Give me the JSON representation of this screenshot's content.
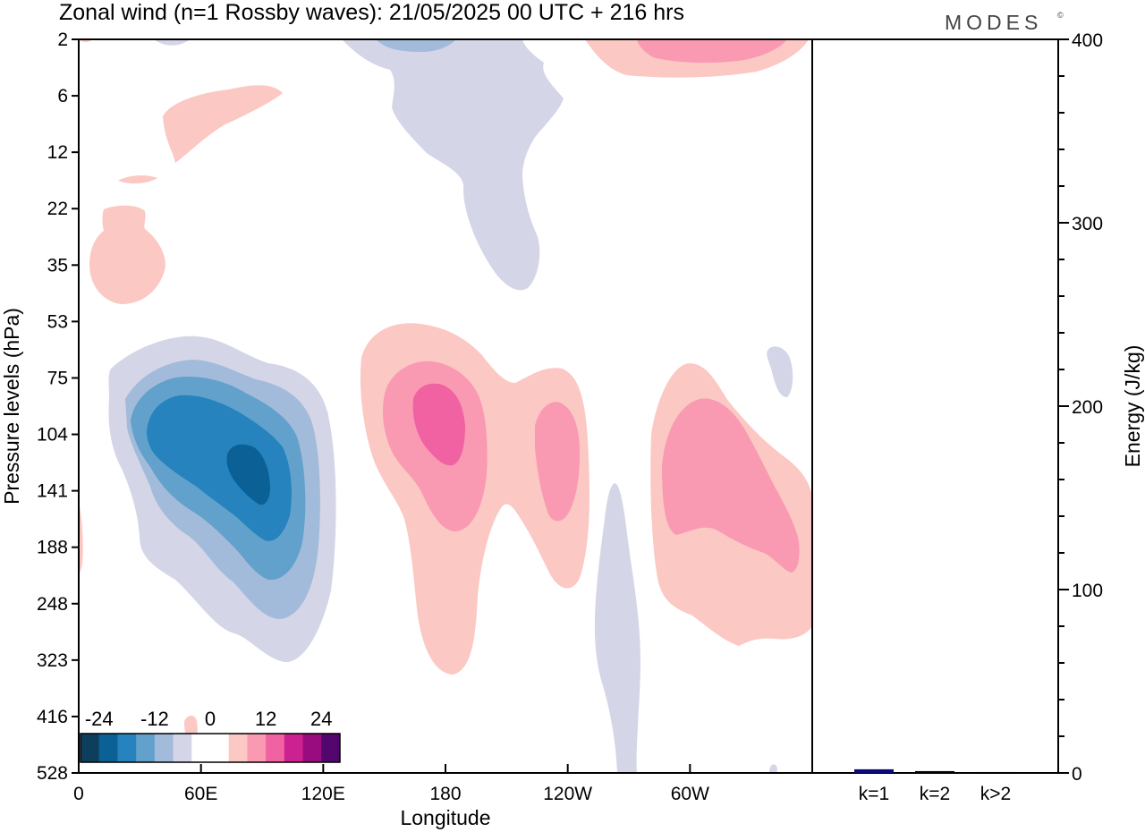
{
  "header": {
    "title": "Zonal wind (n=1 Rossby waves):  21/05/2025  00 UTC  + 216 hrs",
    "brand": "MODES",
    "brand_mark": "©"
  },
  "chart_data": [
    {
      "type": "contour",
      "title": "Zonal wind (n=1 Rossby waves):  21/05/2025  00 UTC  + 216 hrs",
      "xlabel": "Longitude",
      "ylabel": "Pressure levels (hPa)",
      "x_tick_labels": [
        "0",
        "60E",
        "120E",
        "180",
        "120W",
        "60W"
      ],
      "x_ticks_deg_east": [
        0,
        60,
        120,
        180,
        240,
        300
      ],
      "x_range_deg_east": [
        0,
        360
      ],
      "y_tick_labels": [
        "2",
        "6",
        "12",
        "22",
        "35",
        "53",
        "75",
        "104",
        "141",
        "188",
        "248",
        "323",
        "416",
        "528"
      ],
      "y_scale": "model levels, top 2 hPa to bottom 528 hPa",
      "colorbar": {
        "tick_labels": [
          "-24",
          "-12",
          "0",
          "12",
          "24"
        ],
        "tick_values": [
          -24,
          -12,
          0,
          12,
          24
        ],
        "step": 4,
        "colors": [
          "#0d3f5c",
          "#0b6196",
          "#2683bd",
          "#62a1cb",
          "#a3bbda",
          "#d4d6e8",
          "#ffffff",
          "#ffffff",
          "#fbc8c4",
          "#f99ab2",
          "#f062a2",
          "#cc2291",
          "#980c7f",
          "#53066d"
        ]
      },
      "features": [
        {
          "name": "westerly core near 85E",
          "longitude_deg_east": 85,
          "pressure_hPa": 125,
          "level_m_s": -22
        },
        {
          "name": "easterly maximum near 175E",
          "longitude_deg_east": 175,
          "pressure_hPa": 100,
          "level_m_s": 12
        },
        {
          "name": "easterly band near 60W",
          "longitude_deg_east": 300,
          "pressure_hPa": 150,
          "level_m_s": 8
        }
      ]
    },
    {
      "type": "bar",
      "ylabel": "Energy (J/kg)",
      "ylim": [
        0,
        400
      ],
      "y_tick_labels": [
        "0",
        "100",
        "200",
        "300",
        "400"
      ],
      "categories": [
        "k=1",
        "k=2",
        "k>2"
      ],
      "values": [
        2,
        1,
        0.5
      ],
      "colors": [
        "#0a0a7a",
        "#000000",
        "#000000"
      ]
    }
  ]
}
